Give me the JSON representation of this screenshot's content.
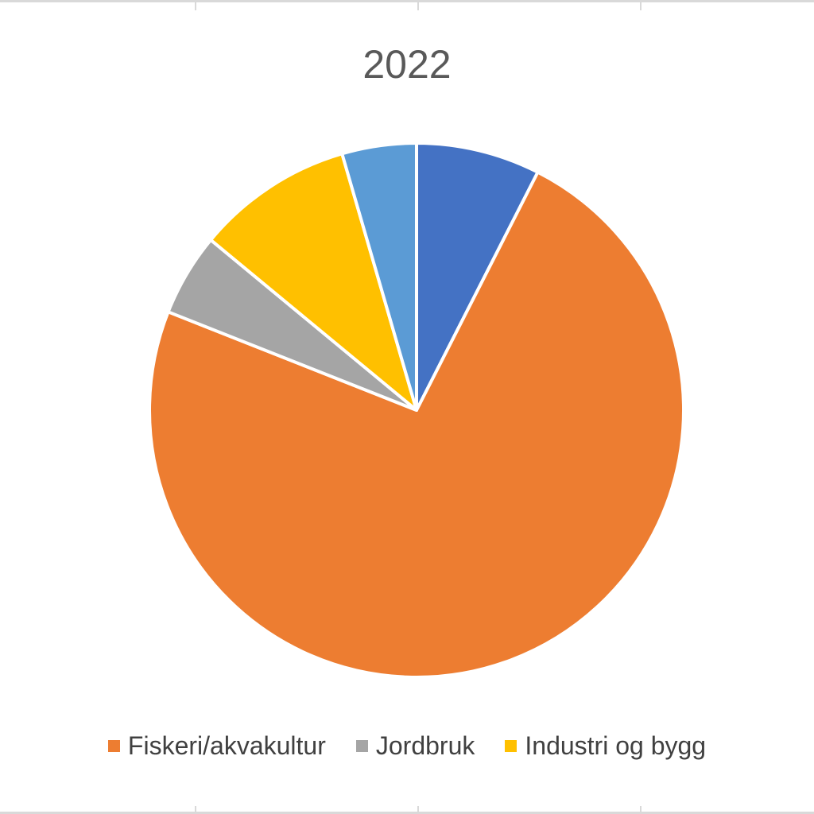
{
  "chart_data": {
    "type": "pie",
    "title": "2022",
    "slices": [
      {
        "name": "",
        "value": 7.5,
        "color": "#4472C4"
      },
      {
        "name": "Fiskeri/akvakultur",
        "value": 73.5,
        "color": "#ED7D31"
      },
      {
        "name": "Jordbruk",
        "value": 5.0,
        "color": "#A5A5A5"
      },
      {
        "name": "Industri og bygg",
        "value": 9.5,
        "color": "#FFC000"
      },
      {
        "name": "",
        "value": 4.5,
        "color": "#5B9BD5"
      }
    ],
    "legend": [
      {
        "label": "Fiskeri/akvakultur",
        "color": "#ED7D31"
      },
      {
        "label": "Jordbruk",
        "color": "#A5A5A5"
      },
      {
        "label": "Industri og bygg",
        "color": "#FFC000"
      }
    ],
    "legend_position": "bottom"
  }
}
